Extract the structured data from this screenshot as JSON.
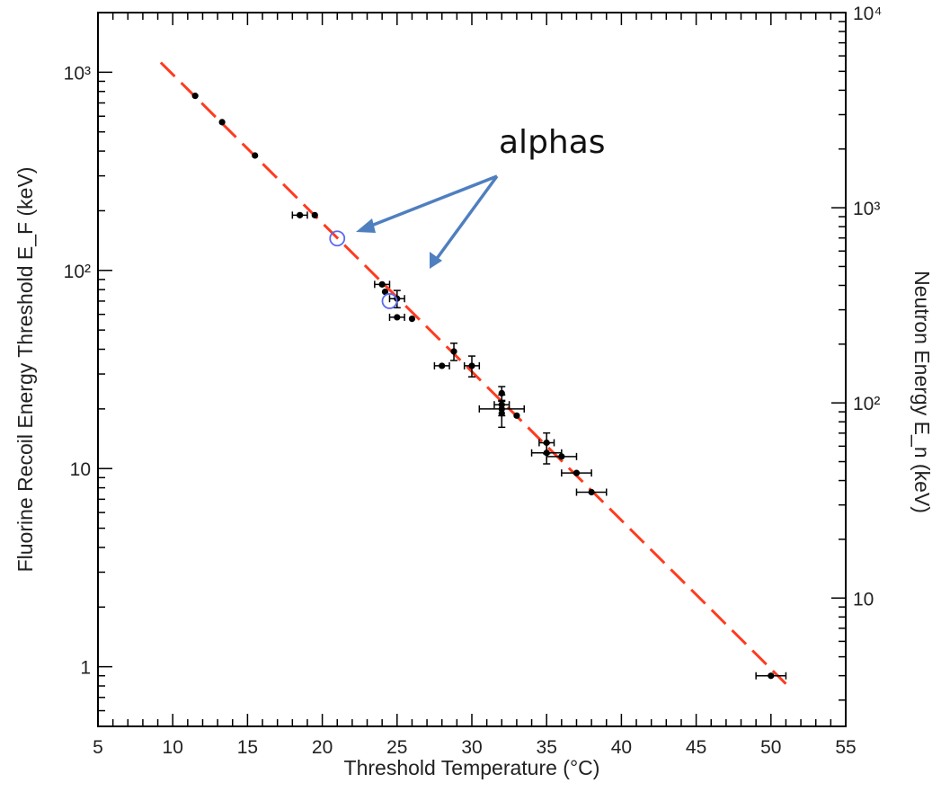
{
  "chart_data": {
    "type": "scatter",
    "title": "",
    "xlabel": "Threshold Temperature (°C)",
    "ylabel_left": "Fluorine Recoil Energy Threshold E_F (keV)",
    "ylabel_right": "Neutron Energy E_n (keV)",
    "xlim": [
      5,
      55
    ],
    "ylim": [
      0.5,
      2000
    ],
    "yscale": "log",
    "right_axis": {
      "scale": "log",
      "ylim": [
        2.2,
        10000
      ],
      "ticks": [
        10,
        100,
        1000,
        10000
      ],
      "tick_labels": [
        "10",
        "10²",
        "10³",
        "10⁴"
      ]
    },
    "x_ticks": [
      5,
      10,
      15,
      20,
      25,
      30,
      35,
      40,
      45,
      50,
      55
    ],
    "y_ticks": [
      1,
      10,
      100,
      1000
    ],
    "y_tick_labels": [
      "1",
      "10",
      "10²",
      "10³"
    ],
    "grid": false,
    "fit_line": {
      "x": [
        9.2,
        51
      ],
      "y": [
        1120,
        0.82
      ],
      "color": "#ff3b1f",
      "style": "dashed"
    },
    "series": [
      {
        "color": "#000000",
        "x": [
          11.5,
          13.3,
          15.5,
          18.5,
          19.5,
          24.0,
          24.2,
          25.0,
          25.0,
          26.0,
          28.0,
          28.8,
          30.0,
          32.0,
          32.0,
          32.0,
          32.0,
          33.0,
          35.0,
          35.0,
          36.0,
          37.0,
          38.0,
          50.0
        ],
        "y": [
          760,
          560,
          380,
          190,
          190,
          85,
          78,
          72,
          58,
          57,
          33,
          39,
          33,
          24,
          21,
          19,
          20,
          18.5,
          13.5,
          12,
          11.5,
          9.5,
          7.6,
          0.9
        ],
        "xerr": [
          0,
          0,
          0,
          0.5,
          0,
          0.5,
          0,
          0.5,
          0.5,
          0,
          0.5,
          0,
          0.5,
          0,
          0.5,
          0,
          1.5,
          0,
          0.5,
          1,
          1,
          1,
          1,
          1
        ],
        "yerr_frac": [
          0,
          0,
          0,
          0,
          0,
          0,
          0,
          0.1,
          0,
          0,
          0,
          0.1,
          0.12,
          0.08,
          0.12,
          0.15,
          0,
          0,
          0.12,
          0.12,
          0,
          0,
          0,
          0
        ]
      },
      {
        "color": "#5a6bf0",
        "marker": "open-circle",
        "x": [
          21.0,
          24.5
        ],
        "y": [
          145,
          70
        ]
      }
    ],
    "annotations": [
      {
        "text": "alphas"
      }
    ]
  }
}
